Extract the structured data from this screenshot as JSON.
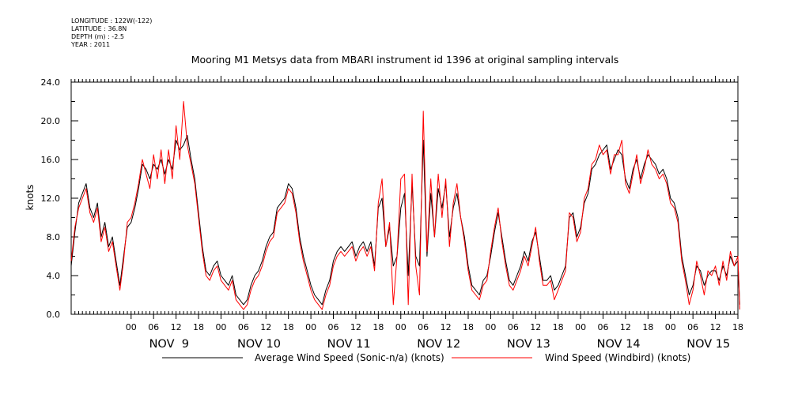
{
  "header": {
    "meta": [
      "LONGITUDE : 122W(-122)",
      "LATITUDE : 36.8N",
      "DEPTH (m) : -2.5",
      "YEAR : 2011"
    ],
    "title": "Mooring M1 Metsys data from MBARI instrument id 1396 at original sampling intervals"
  },
  "chart_data": {
    "type": "line",
    "title": "Mooring M1 Metsys data from MBARI instrument id 1396 at original sampling intervals",
    "xlabel": "",
    "ylabel": "knots",
    "ylim": [
      0,
      24
    ],
    "yticks": [
      "0.0",
      "4.0",
      "8.0",
      "12.0",
      "16.0",
      "20.0",
      "24.0"
    ],
    "xlim": [
      -16,
      162
    ],
    "x_unit": "hours",
    "hour_ticks": [
      {
        "x": 0,
        "label": "00"
      },
      {
        "x": 6,
        "label": "06"
      },
      {
        "x": 12,
        "label": "12"
      },
      {
        "x": 18,
        "label": "18"
      },
      {
        "x": 24,
        "label": "00"
      },
      {
        "x": 30,
        "label": "06"
      },
      {
        "x": 36,
        "label": "12"
      },
      {
        "x": 42,
        "label": "18"
      },
      {
        "x": 48,
        "label": "00"
      },
      {
        "x": 54,
        "label": "06"
      },
      {
        "x": 60,
        "label": "12"
      },
      {
        "x": 66,
        "label": "18"
      },
      {
        "x": 72,
        "label": "00"
      },
      {
        "x": 78,
        "label": "06"
      },
      {
        "x": 84,
        "label": "12"
      },
      {
        "x": 90,
        "label": "18"
      },
      {
        "x": 96,
        "label": "00"
      },
      {
        "x": 102,
        "label": "06"
      },
      {
        "x": 108,
        "label": "12"
      },
      {
        "x": 114,
        "label": "18"
      },
      {
        "x": 120,
        "label": "00"
      },
      {
        "x": 126,
        "label": "06"
      },
      {
        "x": 132,
        "label": "12"
      },
      {
        "x": 138,
        "label": "18"
      },
      {
        "x": 144,
        "label": "00"
      },
      {
        "x": 150,
        "label": "06"
      },
      {
        "x": 156,
        "label": "12"
      },
      {
        "x": 162,
        "label": "18"
      }
    ],
    "day_labels": [
      {
        "x": 0,
        "label": "NOV  9"
      },
      {
        "x": 24,
        "label": "NOV 10"
      },
      {
        "x": 48,
        "label": "NOV 11"
      },
      {
        "x": 72,
        "label": "NOV 12"
      },
      {
        "x": 96,
        "label": "NOV 13"
      },
      {
        "x": 120,
        "label": "NOV 14"
      },
      {
        "x": 144,
        "label": "NOV 15"
      }
    ],
    "series": [
      {
        "name": "Average Wind Speed (Sonic-n/a) (knots)",
        "color": "#000000",
        "x": [
          -16,
          -15,
          -14,
          -13,
          -12,
          -11,
          -10,
          -9,
          -8,
          -7,
          -6,
          -5,
          -4,
          -3,
          -2,
          -1,
          0,
          1,
          2,
          3,
          4,
          5,
          6,
          7,
          8,
          9,
          10,
          11,
          12,
          13,
          14,
          15,
          16,
          17,
          18,
          19,
          20,
          21,
          22,
          23,
          24,
          25,
          26,
          27,
          28,
          29,
          30,
          31,
          32,
          33,
          34,
          35,
          36,
          37,
          38,
          39,
          40,
          41,
          42,
          43,
          44,
          45,
          46,
          47,
          48,
          49,
          50,
          51,
          52,
          53,
          54,
          55,
          56,
          57,
          58,
          59,
          60,
          61,
          62,
          63,
          64,
          65,
          66,
          67,
          68,
          69,
          70,
          71,
          72,
          73,
          74,
          75,
          76,
          77,
          78,
          79,
          80,
          81,
          82,
          83,
          84,
          85,
          86,
          87,
          88,
          89,
          90,
          91,
          92,
          93,
          94,
          95,
          96,
          97,
          98,
          99,
          100,
          101,
          102,
          103,
          104,
          105,
          106,
          107,
          108,
          109,
          110,
          111,
          112,
          113,
          114,
          115,
          116,
          117,
          118,
          119,
          120,
          121,
          122,
          123,
          124,
          125,
          126,
          127,
          128,
          129,
          130,
          131,
          132,
          133,
          134,
          135,
          136,
          137,
          138,
          139,
          140,
          141,
          142,
          143,
          144,
          145,
          146,
          147,
          148,
          149,
          150,
          151,
          152,
          153,
          154,
          155,
          156,
          157,
          158,
          159,
          160,
          161,
          162,
          162.5
        ],
        "y": [
          5.0,
          8.5,
          11.5,
          12.5,
          13.5,
          11.0,
          10.0,
          11.5,
          8.0,
          9.5,
          7.0,
          8.0,
          5.5,
          3.0,
          6.0,
          9.0,
          9.5,
          11.0,
          13.0,
          15.5,
          15.0,
          14.0,
          15.5,
          15.0,
          16.0,
          14.5,
          16.0,
          15.0,
          18.0,
          17.0,
          17.5,
          18.5,
          16.0,
          14.0,
          10.5,
          7.0,
          4.5,
          4.0,
          5.0,
          5.5,
          4.0,
          3.5,
          3.0,
          4.0,
          2.0,
          1.5,
          1.0,
          1.5,
          3.0,
          4.0,
          4.5,
          5.5,
          7.0,
          8.0,
          8.5,
          11.0,
          11.5,
          12.0,
          13.5,
          13.0,
          11.0,
          8.0,
          6.0,
          4.5,
          3.0,
          2.0,
          1.5,
          1.0,
          2.5,
          3.5,
          5.5,
          6.5,
          7.0,
          6.5,
          7.0,
          7.5,
          6.0,
          7.0,
          7.5,
          6.5,
          7.5,
          5.0,
          11.0,
          12.0,
          7.0,
          9.0,
          5.0,
          6.0,
          11.0,
          12.5,
          4.0,
          13.5,
          6.0,
          5.0,
          18.0,
          6.0,
          12.5,
          8.0,
          13.0,
          11.0,
          13.5,
          8.0,
          11.0,
          12.5,
          10.0,
          8.0,
          5.0,
          3.0,
          2.5,
          2.0,
          3.5,
          4.0,
          6.0,
          8.5,
          10.5,
          8.0,
          5.5,
          3.5,
          3.0,
          4.0,
          5.0,
          6.5,
          5.5,
          7.5,
          8.5,
          6.0,
          3.5,
          3.5,
          4.0,
          2.5,
          3.0,
          4.0,
          5.0,
          10.0,
          10.5,
          8.0,
          9.0,
          11.5,
          12.5,
          15.0,
          15.5,
          16.5,
          17.0,
          17.5,
          15.0,
          16.0,
          17.0,
          16.5,
          14.0,
          13.0,
          15.0,
          16.0,
          14.0,
          15.5,
          16.5,
          16.0,
          15.5,
          14.5,
          15.0,
          14.0,
          12.0,
          11.5,
          10.0,
          6.0,
          4.0,
          2.0,
          3.0,
          5.0,
          4.5,
          3.0,
          4.0,
          4.5,
          4.5,
          3.5,
          5.0,
          4.0,
          6.0,
          5.0,
          5.5,
          1.0
        ]
      },
      {
        "name": "Wind Speed (Windbird) (knots)",
        "color": "#ff0000",
        "x": [
          -16,
          -15,
          -14,
          -13,
          -12,
          -11,
          -10,
          -9,
          -8,
          -7,
          -6,
          -5,
          -4,
          -3,
          -2,
          -1,
          0,
          1,
          2,
          3,
          4,
          5,
          6,
          7,
          8,
          9,
          10,
          11,
          12,
          13,
          14,
          15,
          16,
          17,
          18,
          19,
          20,
          21,
          22,
          23,
          24,
          25,
          26,
          27,
          28,
          29,
          30,
          31,
          32,
          33,
          34,
          35,
          36,
          37,
          38,
          39,
          40,
          41,
          42,
          43,
          44,
          45,
          46,
          47,
          48,
          49,
          50,
          51,
          52,
          53,
          54,
          55,
          56,
          57,
          58,
          59,
          60,
          61,
          62,
          63,
          64,
          65,
          66,
          67,
          68,
          69,
          70,
          71,
          72,
          73,
          74,
          75,
          76,
          77,
          78,
          79,
          80,
          81,
          82,
          83,
          84,
          85,
          86,
          87,
          88,
          89,
          90,
          91,
          92,
          93,
          94,
          95,
          96,
          97,
          98,
          99,
          100,
          101,
          102,
          103,
          104,
          105,
          106,
          107,
          108,
          109,
          110,
          111,
          112,
          113,
          114,
          115,
          116,
          117,
          118,
          119,
          120,
          121,
          122,
          123,
          124,
          125,
          126,
          127,
          128,
          129,
          130,
          131,
          132,
          133,
          134,
          135,
          136,
          137,
          138,
          139,
          140,
          141,
          142,
          143,
          144,
          145,
          146,
          147,
          148,
          149,
          150,
          151,
          152,
          153,
          154,
          155,
          156,
          157,
          158,
          159,
          160,
          161,
          162,
          162.5
        ],
        "y": [
          5.5,
          9.0,
          11.0,
          12.0,
          13.0,
          10.5,
          9.5,
          11.0,
          7.5,
          9.0,
          6.5,
          7.5,
          5.0,
          2.5,
          5.5,
          9.5,
          10.0,
          11.5,
          13.5,
          16.0,
          14.5,
          13.0,
          16.5,
          14.0,
          17.0,
          13.5,
          17.0,
          14.0,
          19.5,
          16.0,
          22.0,
          17.5,
          15.5,
          13.5,
          10.0,
          6.5,
          4.0,
          3.5,
          4.5,
          5.0,
          3.5,
          3.0,
          2.5,
          3.5,
          1.5,
          1.0,
          0.5,
          1.0,
          2.5,
          3.5,
          4.0,
          5.0,
          6.5,
          7.5,
          8.0,
          10.5,
          11.0,
          11.5,
          13.0,
          12.5,
          10.5,
          7.5,
          5.5,
          4.0,
          2.5,
          1.5,
          1.0,
          0.5,
          2.0,
          3.0,
          5.0,
          6.0,
          6.5,
          6.0,
          6.5,
          7.0,
          5.5,
          6.5,
          7.0,
          6.0,
          7.0,
          4.5,
          11.5,
          14.0,
          7.0,
          9.5,
          1.0,
          6.0,
          14.0,
          14.5,
          1.0,
          14.5,
          5.0,
          2.0,
          21.0,
          6.5,
          14.0,
          8.0,
          14.5,
          10.0,
          14.0,
          7.0,
          11.5,
          13.5,
          10.0,
          7.5,
          4.5,
          2.5,
          2.0,
          1.5,
          3.0,
          3.5,
          6.5,
          9.0,
          11.0,
          7.5,
          5.0,
          3.0,
          2.5,
          3.5,
          4.5,
          6.0,
          5.0,
          7.0,
          9.0,
          5.5,
          3.0,
          3.0,
          3.5,
          1.5,
          2.5,
          3.5,
          4.5,
          10.5,
          10.0,
          7.5,
          8.5,
          12.0,
          13.0,
          15.5,
          16.0,
          17.5,
          16.5,
          17.0,
          14.5,
          16.5,
          16.5,
          18.0,
          13.5,
          12.5,
          14.5,
          16.5,
          13.5,
          15.0,
          17.0,
          15.5,
          15.0,
          14.0,
          14.5,
          13.5,
          11.5,
          11.0,
          9.5,
          5.5,
          3.5,
          1.0,
          2.5,
          5.5,
          4.0,
          2.0,
          4.5,
          4.0,
          5.0,
          3.0,
          5.5,
          3.5,
          6.5,
          5.0,
          6.0,
          0.5
        ]
      }
    ],
    "grid": false,
    "legend": "bottom"
  }
}
